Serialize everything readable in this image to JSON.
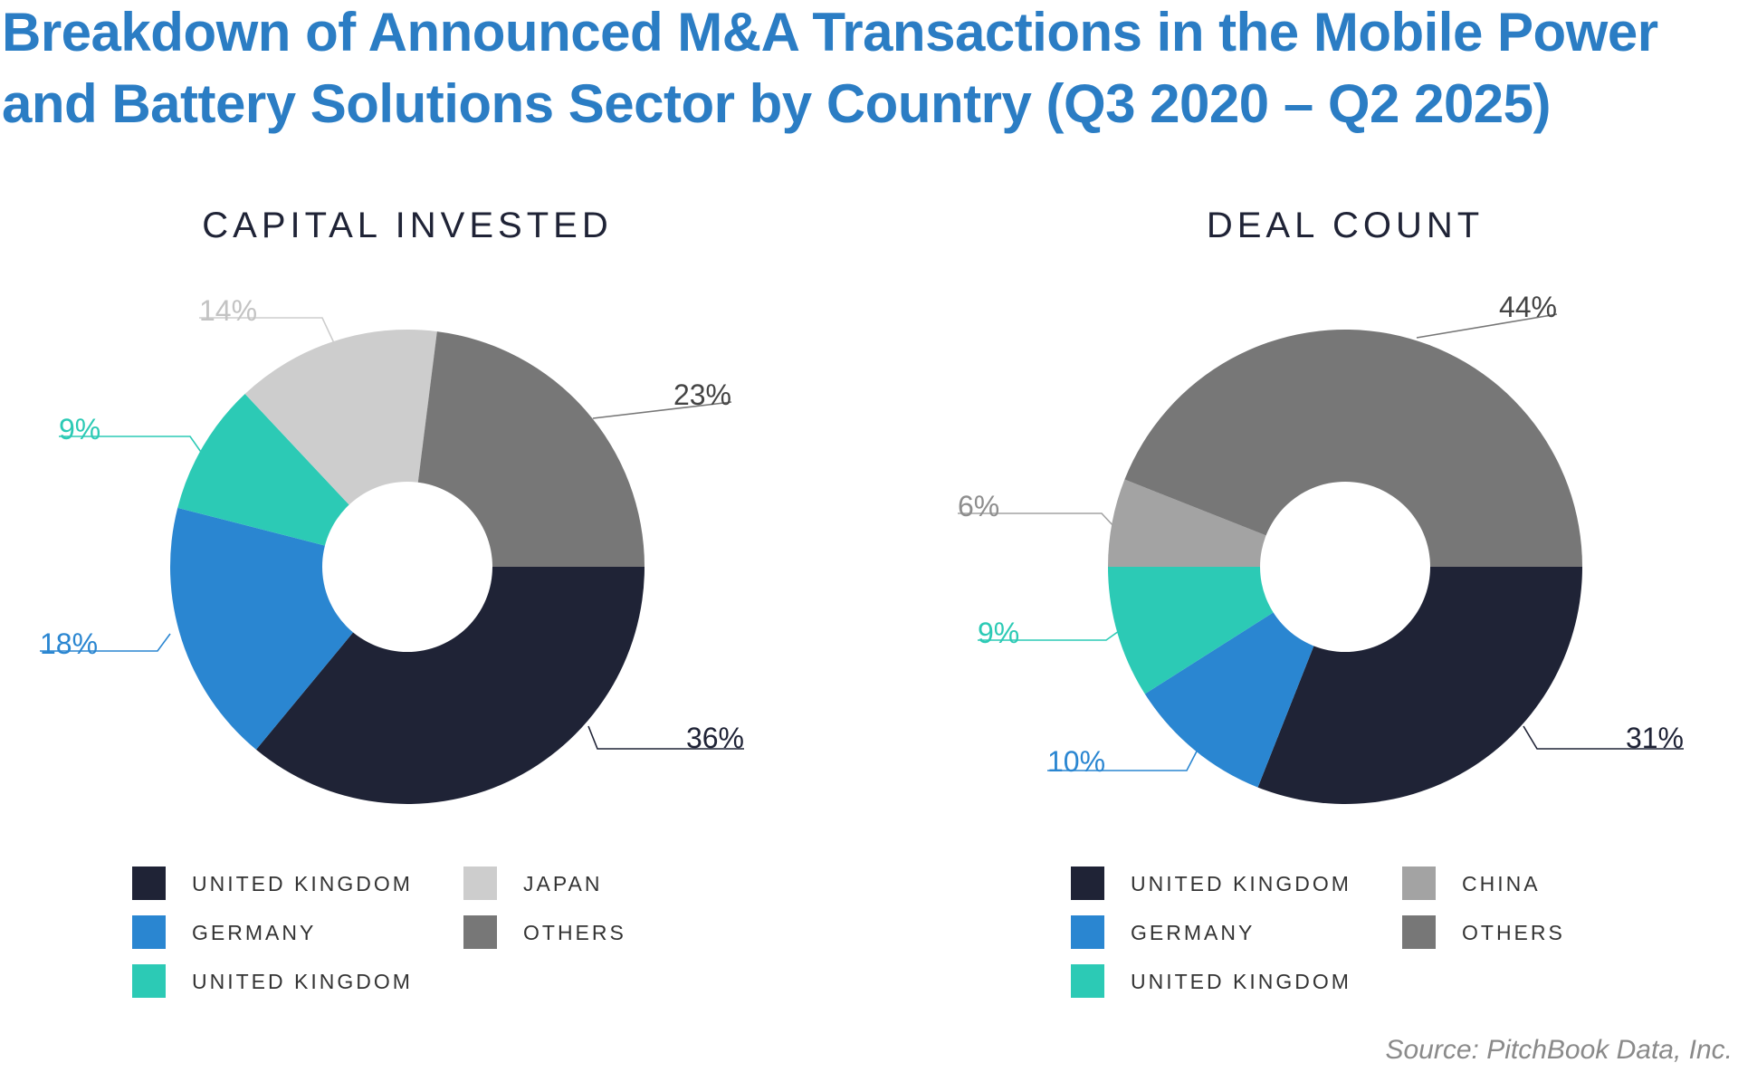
{
  "title": {
    "line1": "Breakdown of Announced M&A Transactions in the Mobile Power",
    "line2": "and Battery Solutions Sector by Country (Q3 2020 – Q2 2025)"
  },
  "source": "Source: PitchBook Data, Inc.",
  "chart_data": [
    {
      "type": "pie",
      "title": "CAPITAL INVESTED",
      "donut": true,
      "slices": [
        {
          "label": "UNITED KINGDOM",
          "value": 36,
          "value_label": "36%",
          "color": "#1f2336"
        },
        {
          "label": "GERMANY",
          "value": 18,
          "value_label": "18%",
          "color": "#2a86d1"
        },
        {
          "label": "UNITED KINGDOM",
          "value": 9,
          "value_label": "9%",
          "color": "#2ccab5"
        },
        {
          "label": "JAPAN",
          "value": 14,
          "value_label": "14%",
          "color": "#cdcdcd"
        },
        {
          "label": "OTHERS",
          "value": 23,
          "value_label": "23%",
          "color": "#777777"
        }
      ],
      "legend_order": [
        0,
        3,
        1,
        4,
        2
      ],
      "legend_position": "bottom"
    },
    {
      "type": "pie",
      "title": "DEAL COUNT",
      "donut": true,
      "slices": [
        {
          "label": "UNITED KINGDOM",
          "value": 31,
          "value_label": "31%",
          "color": "#1f2336"
        },
        {
          "label": "GERMANY",
          "value": 10,
          "value_label": "10%",
          "color": "#2a86d1"
        },
        {
          "label": "UNITED KINGDOM",
          "value": 9,
          "value_label": "9%",
          "color": "#2ccab5"
        },
        {
          "label": "CHINA",
          "value": 6,
          "value_label": "6%",
          "color": "#a3a3a3"
        },
        {
          "label": "OTHERS",
          "value": 44,
          "value_label": "44%",
          "color": "#777777"
        }
      ],
      "legend_order": [
        0,
        3,
        1,
        4,
        2
      ],
      "legend_position": "bottom"
    }
  ]
}
